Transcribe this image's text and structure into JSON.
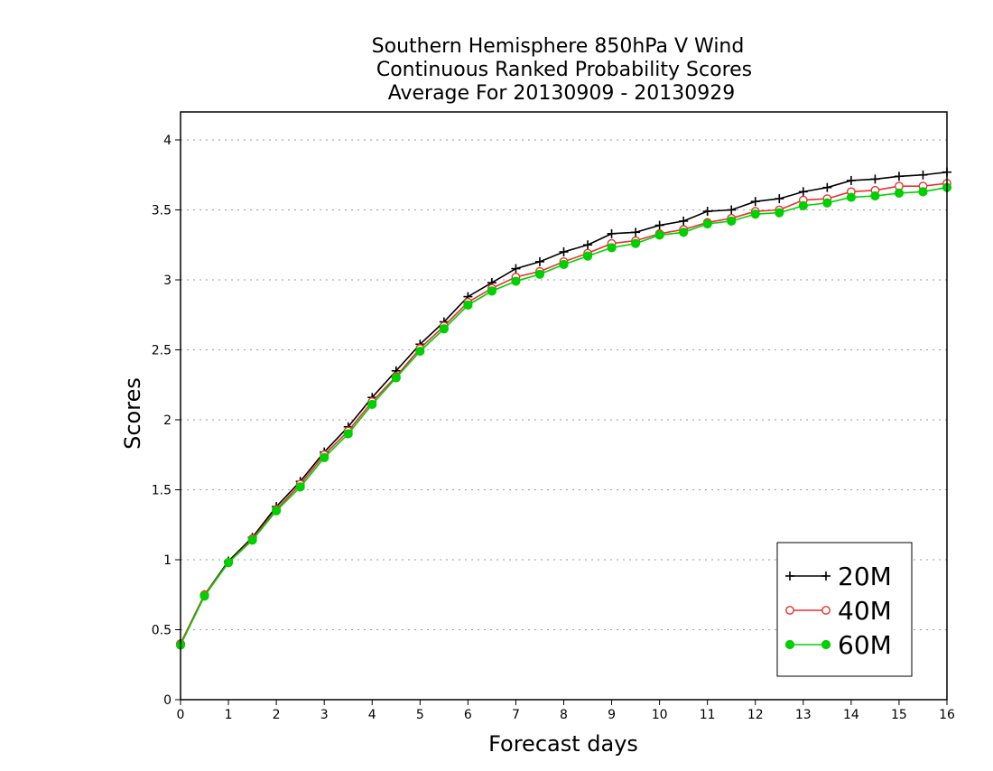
{
  "chart_data": {
    "type": "line",
    "title": [
      "Southern Hemisphere 850hPa V Wind",
      "Continuous Ranked Probability Scores",
      "Average For 20130909 - 20130929"
    ],
    "xlabel": "Forecast days",
    "ylabel": "Scores",
    "xlim": [
      0,
      16
    ],
    "ylim": [
      0,
      4.2
    ],
    "xticks": [
      0,
      1,
      2,
      3,
      4,
      5,
      6,
      7,
      8,
      9,
      10,
      11,
      12,
      13,
      14,
      15,
      16
    ],
    "yticks": [
      0,
      0.5,
      1,
      1.5,
      2,
      2.5,
      3,
      3.5,
      4
    ],
    "xtick_labels": [
      "0",
      "1",
      "2",
      "3",
      "4",
      "5",
      "6",
      "7",
      "8",
      "9",
      "10",
      "11",
      "12",
      "13",
      "14",
      "15",
      "16"
    ],
    "ytick_labels": [
      "0",
      "0.5",
      "1",
      "1.5",
      "2",
      "2.5",
      "3",
      "3.5",
      "4"
    ],
    "grid": "horizontal dotted",
    "legend_position": "bottom-right",
    "x": [
      0,
      0.5,
      1,
      1.5,
      2,
      2.5,
      3,
      3.5,
      4,
      4.5,
      5,
      5.5,
      6,
      6.5,
      7,
      7.5,
      8,
      8.5,
      9,
      9.5,
      10,
      10.5,
      11,
      11.5,
      12,
      12.5,
      13,
      13.5,
      14,
      14.5,
      15,
      15.5,
      16
    ],
    "series": [
      {
        "name": "20M",
        "color": "#000000",
        "marker": "plus",
        "values": [
          0.4,
          0.75,
          0.99,
          1.16,
          1.38,
          1.56,
          1.77,
          1.95,
          2.16,
          2.35,
          2.54,
          2.7,
          2.88,
          2.98,
          3.08,
          3.13,
          3.2,
          3.25,
          3.33,
          3.34,
          3.39,
          3.42,
          3.49,
          3.5,
          3.56,
          3.58,
          3.63,
          3.66,
          3.71,
          3.72,
          3.74,
          3.75,
          3.77
        ]
      },
      {
        "name": "40M",
        "color": "#e83030",
        "marker": "open-circle",
        "values": [
          0.4,
          0.75,
          0.98,
          1.15,
          1.36,
          1.54,
          1.75,
          1.92,
          2.13,
          2.31,
          2.51,
          2.67,
          2.84,
          2.94,
          3.02,
          3.06,
          3.13,
          3.19,
          3.26,
          3.28,
          3.33,
          3.36,
          3.41,
          3.44,
          3.49,
          3.5,
          3.57,
          3.58,
          3.63,
          3.64,
          3.67,
          3.67,
          3.69
        ]
      },
      {
        "name": "60M",
        "color": "#00d000",
        "marker": "filled-circle",
        "values": [
          0.39,
          0.74,
          0.98,
          1.14,
          1.35,
          1.52,
          1.73,
          1.9,
          2.11,
          2.3,
          2.49,
          2.65,
          2.82,
          2.92,
          2.99,
          3.04,
          3.11,
          3.17,
          3.23,
          3.26,
          3.32,
          3.34,
          3.4,
          3.42,
          3.47,
          3.48,
          3.53,
          3.55,
          3.59,
          3.6,
          3.62,
          3.63,
          3.66
        ]
      }
    ]
  }
}
